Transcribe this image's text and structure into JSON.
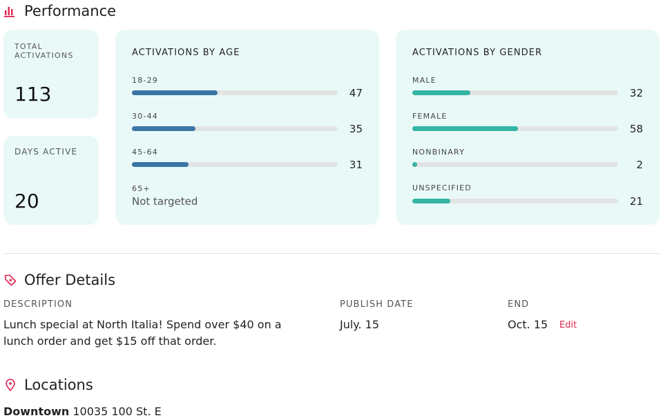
{
  "performance": {
    "title": "Performance",
    "icon": "bar-chart-icon",
    "total_activations": {
      "label": "TOTAL ACTIVATIONS",
      "value": "113"
    },
    "days_active": {
      "label": "DAYS ACTIVE",
      "value": "20"
    },
    "by_age": {
      "title": "ACTIVATIONS BY AGE",
      "items": [
        {
          "label": "18-29",
          "value": 47
        },
        {
          "label": "30-44",
          "value": 35
        },
        {
          "label": "45-64",
          "value": 31
        }
      ],
      "extra": {
        "label": "65+",
        "note": "Not targeted"
      },
      "scale_max": 113,
      "color": "#3b75a6"
    },
    "by_gender": {
      "title": "ACTIVATIONS BY GENDER",
      "items": [
        {
          "label": "MALE",
          "value": 32
        },
        {
          "label": "FEMALE",
          "value": 58
        },
        {
          "label": "NONBINARY",
          "value": 2
        },
        {
          "label": "UNSPECIFIED",
          "value": 21
        }
      ],
      "scale_max": 113,
      "color": "#35b5a5"
    }
  },
  "offer_details": {
    "title": "Offer Details",
    "icon": "tag-heart-icon",
    "description_label": "DESCRIPTION",
    "description_line1": "Lunch special at North Italia! Spend over $40 on a",
    "description_line2": "lunch order and get $15 off that order.",
    "publish_label": "PUBLISH DATE",
    "publish_value": "July. 15",
    "end_label": "END",
    "end_value": "Oct. 15",
    "edit_label": "Edit"
  },
  "locations": {
    "title": "Locations",
    "icon": "map-pin-icon",
    "first_name": "Downtown",
    "first_address": "10035 100 St. E"
  },
  "colors": {
    "accent": "#e0244f",
    "card_bg": "#e9f9f8"
  }
}
